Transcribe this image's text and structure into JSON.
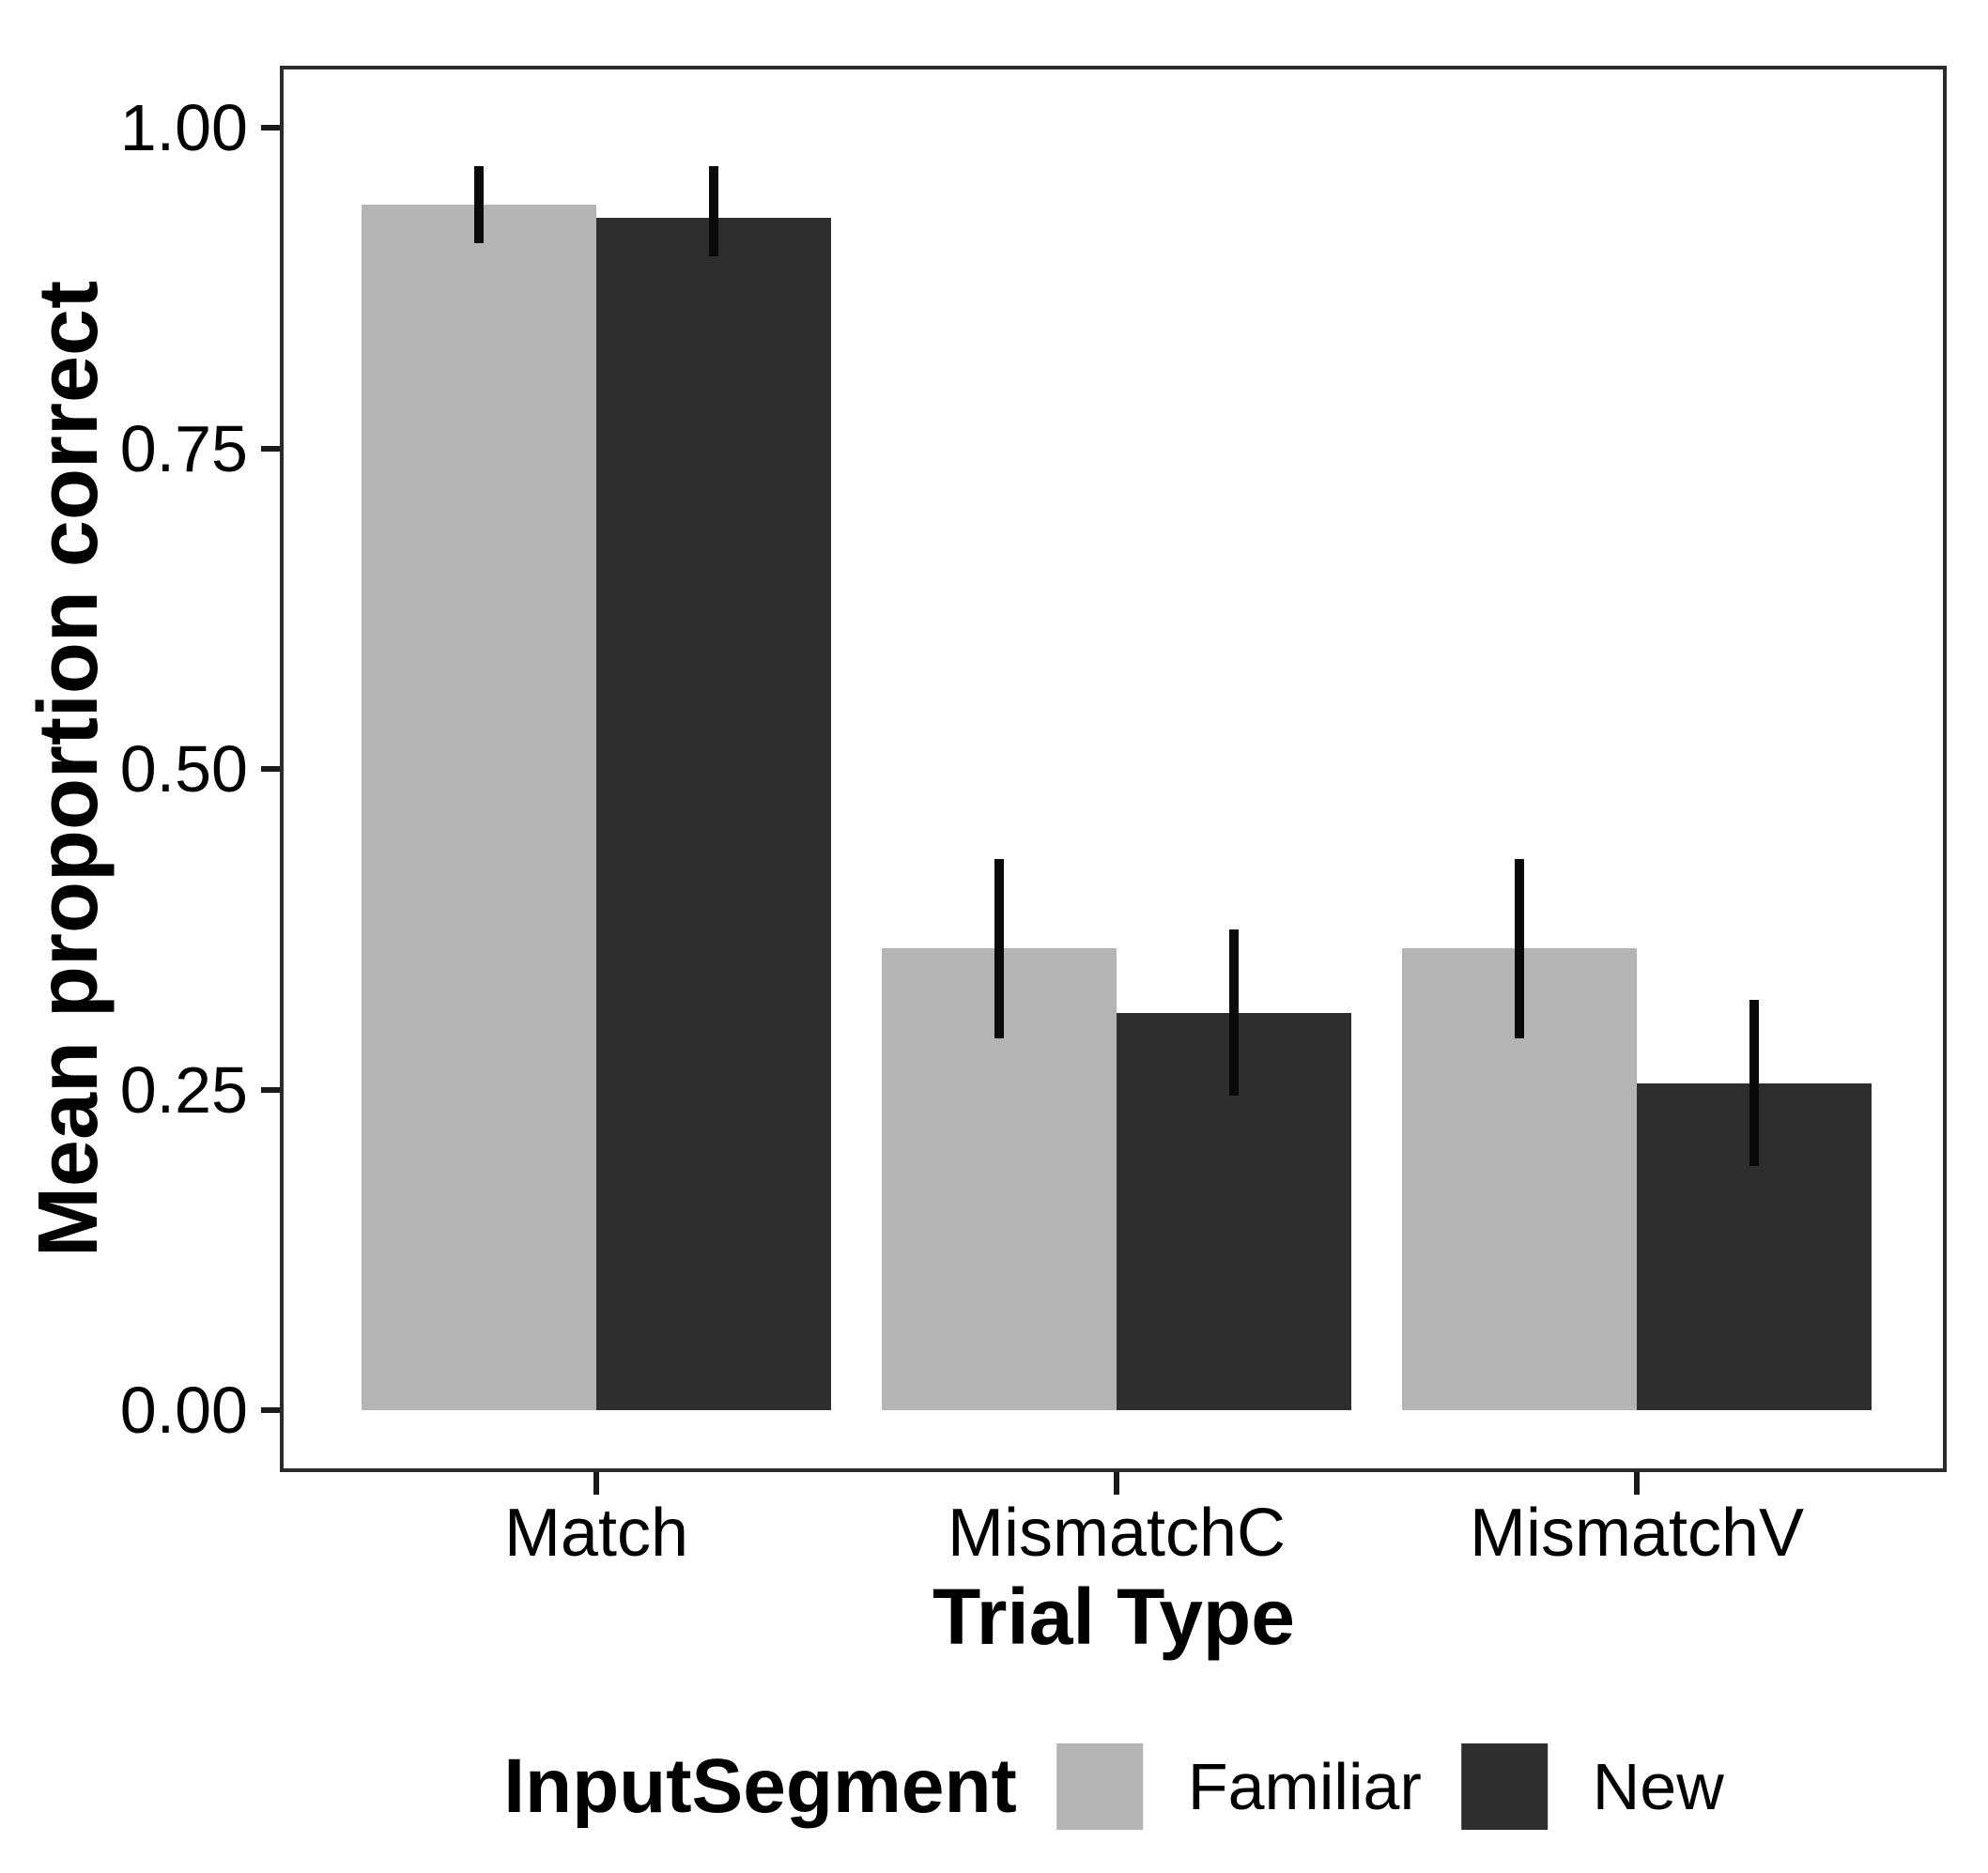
{
  "chart_data": {
    "type": "bar",
    "bar_style": "dodged",
    "title": "",
    "xlabel": "Trial Type",
    "ylabel": "Mean proportion correct",
    "legend_title": "InputSegment",
    "legend_position": "bottom",
    "categories": [
      "Match",
      "MismatchC",
      "MismatchV"
    ],
    "series": [
      {
        "name": "Familiar",
        "color": "#b4b4b4",
        "values": [
          0.94,
          0.36,
          0.36
        ],
        "error_low": [
          0.91,
          0.29,
          0.29
        ],
        "error_high": [
          0.97,
          0.43,
          0.43
        ]
      },
      {
        "name": "New",
        "color": "#2e2e2e",
        "values": [
          0.93,
          0.31,
          0.255
        ],
        "error_low": [
          0.9,
          0.245,
          0.19
        ],
        "error_high": [
          0.97,
          0.375,
          0.32
        ]
      }
    ],
    "ylim": [
      0.0,
      1.05
    ],
    "yticks": [
      0.0,
      0.25,
      0.5,
      0.75,
      1.0
    ],
    "ytick_labels": [
      "0.00",
      "0.25",
      "0.50",
      "0.75",
      "1.00"
    ],
    "grid": false,
    "error_bars": "vertical line, no caps",
    "colors": {
      "background": "#ffffff",
      "panel_border": "#2b2b2b",
      "text": "#000000",
      "errorbar": "#0a0a0a"
    }
  }
}
